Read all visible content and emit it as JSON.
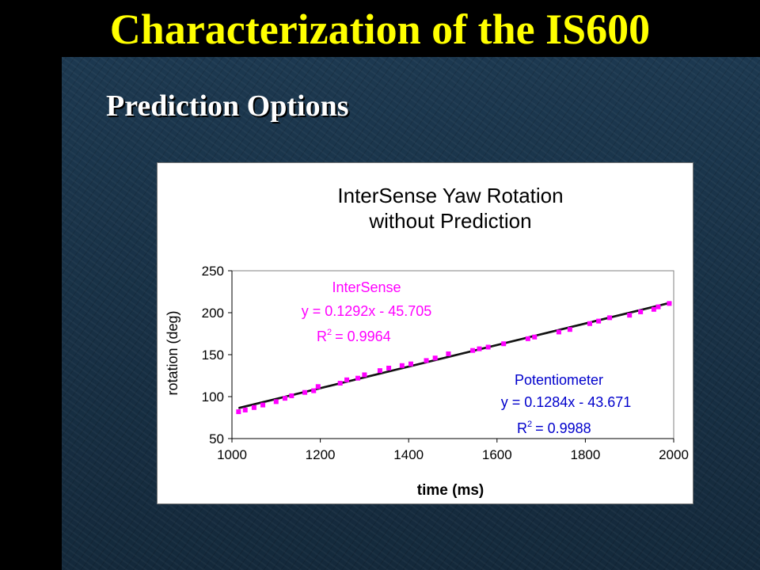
{
  "slide": {
    "title": "Characterization of the IS600",
    "subtitle": "Prediction Options"
  },
  "chart_data": {
    "type": "scatter",
    "title_lines": [
      "InterSense Yaw Rotation",
      "without Prediction"
    ],
    "xlabel": "time (ms)",
    "ylabel": "rotation (deg)",
    "xlim": [
      1000,
      2000
    ],
    "ylim": [
      50,
      250
    ],
    "xticks": [
      1000,
      1200,
      1400,
      1600,
      1800,
      2000
    ],
    "yticks": [
      50,
      100,
      150,
      200,
      250
    ],
    "grid": false,
    "legend": "none",
    "series": [
      {
        "name": "InterSense",
        "color": "#ff00ff",
        "marker": "square",
        "x": [
          1015,
          1030,
          1050,
          1070,
          1100,
          1120,
          1135,
          1165,
          1185,
          1195,
          1245,
          1260,
          1285,
          1300,
          1335,
          1355,
          1385,
          1405,
          1440,
          1460,
          1490,
          1545,
          1560,
          1580,
          1615,
          1670,
          1685,
          1740,
          1765,
          1810,
          1830,
          1855,
          1900,
          1925,
          1955,
          1965,
          1990
        ],
        "y": [
          82,
          84,
          87,
          90,
          94,
          98,
          101,
          105,
          107,
          112,
          116,
          120,
          122,
          126,
          131,
          134,
          137,
          139,
          143,
          146,
          151,
          155,
          157,
          159,
          163,
          169,
          171,
          177,
          180,
          187,
          190,
          194,
          197,
          201,
          204,
          207,
          211
        ],
        "fit": {
          "slope": 0.1292,
          "intercept": -45.705
        },
        "equation": "y = 0.1292x - 45.705",
        "r2_value": "= 0.9964"
      },
      {
        "name": "Potentiometer",
        "color": "#000000",
        "marker": "line",
        "fit": {
          "slope": 0.1284,
          "intercept": -43.671
        },
        "equation": "y = 0.1284x - 43.671",
        "r2_value": "= 0.9988"
      }
    ],
    "annotations": {
      "r2_label": "R",
      "r2_exp": "2",
      "intersense_color": "#ff00ff",
      "potentiometer_color": "#0000cc"
    }
  }
}
